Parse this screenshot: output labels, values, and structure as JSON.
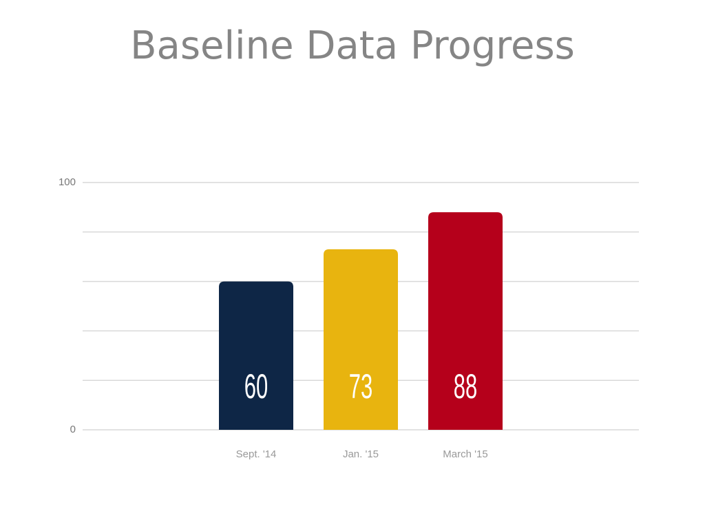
{
  "chart_data": {
    "type": "bar",
    "title": "Baseline Data Progress",
    "categories": [
      "Sept. '14",
      "Jan. '15",
      "March '15"
    ],
    "values": [
      60,
      73,
      88
    ],
    "colors": [
      "#0e2646",
      "#e8b40f",
      "#b5001b"
    ],
    "ylim": [
      0,
      100
    ],
    "yticks": [
      0,
      100
    ],
    "gridlines": [
      0,
      20,
      40,
      60,
      80,
      100
    ],
    "grid": true
  }
}
